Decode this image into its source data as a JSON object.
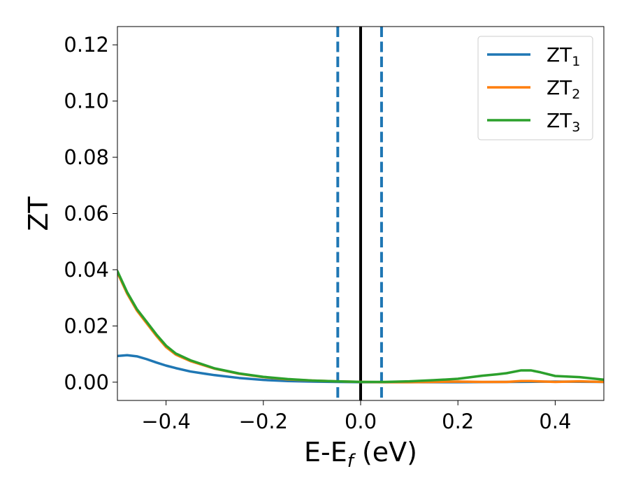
{
  "chart_data": {
    "type": "line",
    "title": "",
    "xlabel": "E-E_f (eV)",
    "xlabel_parts": {
      "main": "E-E",
      "sub": "f",
      "rest": " (eV)"
    },
    "ylabel": "ZT",
    "xlim": [
      -0.5,
      0.5
    ],
    "ylim": [
      -0.0065,
      0.1265
    ],
    "xticks": [
      -0.4,
      -0.2,
      0.0,
      0.2,
      0.4
    ],
    "xtick_labels": [
      "−0.4",
      "−0.2",
      "0.0",
      "0.2",
      "0.4"
    ],
    "yticks": [
      0.0,
      0.02,
      0.04,
      0.06,
      0.08,
      0.1,
      0.12
    ],
    "ytick_labels": [
      "0.00",
      "0.02",
      "0.04",
      "0.06",
      "0.08",
      "0.10",
      "0.12"
    ],
    "grid": false,
    "legend_position": "top-right",
    "vlines": [
      {
        "x": -0.047,
        "style": "dashed",
        "color": "#1f77b4"
      },
      {
        "x": 0.0,
        "style": "solid",
        "color": "#000000"
      },
      {
        "x": 0.043,
        "style": "dashed",
        "color": "#1f77b4"
      }
    ],
    "series": [
      {
        "name": "ZT_1",
        "label_main": "ZT",
        "label_sub": "1",
        "color": "#1f77b4",
        "x": [
          -0.5,
          -0.48,
          -0.46,
          -0.44,
          -0.42,
          -0.4,
          -0.38,
          -0.35,
          -0.32,
          -0.3,
          -0.25,
          -0.2,
          -0.15,
          -0.1,
          -0.05,
          0.0,
          0.1,
          0.2,
          0.3,
          0.4,
          0.5
        ],
        "y": [
          0.0093,
          0.0096,
          0.0092,
          0.0082,
          0.007,
          0.0059,
          0.005,
          0.0038,
          0.003,
          0.0025,
          0.0015,
          0.0008,
          0.0004,
          0.0002,
          0.0001,
          0.0,
          0.0,
          0.0,
          0.0001,
          0.0002,
          0.0001
        ]
      },
      {
        "name": "ZT_2",
        "label_main": "ZT",
        "label_sub": "2",
        "color": "#ff7f0e",
        "x": [
          -0.5,
          -0.48,
          -0.46,
          -0.44,
          -0.42,
          -0.4,
          -0.38,
          -0.35,
          -0.3,
          -0.25,
          -0.2,
          -0.15,
          -0.1,
          -0.05,
          0.0,
          0.05,
          0.1,
          0.15,
          0.2,
          0.25,
          0.3,
          0.33,
          0.35,
          0.4,
          0.45,
          0.5
        ],
        "y": [
          0.039,
          0.0315,
          0.0255,
          0.021,
          0.0165,
          0.0125,
          0.0098,
          0.0075,
          0.0048,
          0.003,
          0.0018,
          0.001,
          0.0006,
          0.0003,
          0.0001,
          0.0,
          0.0,
          0.0001,
          0.0002,
          0.0001,
          0.0001,
          0.0004,
          0.0004,
          0.0001,
          0.0003,
          0.0001
        ]
      },
      {
        "name": "ZT_3",
        "label_main": "ZT",
        "label_sub": "3",
        "color": "#2ca02c",
        "x": [
          -0.5,
          -0.48,
          -0.46,
          -0.44,
          -0.42,
          -0.4,
          -0.38,
          -0.35,
          -0.3,
          -0.25,
          -0.2,
          -0.15,
          -0.1,
          -0.05,
          0.0,
          0.05,
          0.1,
          0.15,
          0.2,
          0.25,
          0.28,
          0.3,
          0.33,
          0.35,
          0.37,
          0.4,
          0.45,
          0.5
        ],
        "y": [
          0.0395,
          0.032,
          0.026,
          0.0215,
          0.017,
          0.013,
          0.0102,
          0.0078,
          0.0049,
          0.0031,
          0.0019,
          0.0011,
          0.0006,
          0.0003,
          0.0001,
          0.0001,
          0.0003,
          0.0007,
          0.0012,
          0.0023,
          0.0028,
          0.0032,
          0.0042,
          0.0042,
          0.0035,
          0.0022,
          0.0018,
          0.0009
        ]
      }
    ]
  }
}
